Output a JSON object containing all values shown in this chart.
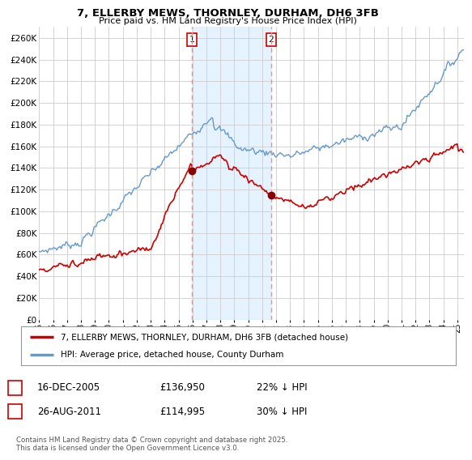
{
  "title": "7, ELLERBY MEWS, THORNLEY, DURHAM, DH6 3FB",
  "subtitle": "Price paid vs. HM Land Registry's House Price Index (HPI)",
  "ylabel_ticks": [
    "£0",
    "£20K",
    "£40K",
    "£60K",
    "£80K",
    "£100K",
    "£120K",
    "£140K",
    "£160K",
    "£180K",
    "£200K",
    "£220K",
    "£240K",
    "£260K"
  ],
  "ytick_values": [
    0,
    20000,
    40000,
    60000,
    80000,
    100000,
    120000,
    140000,
    160000,
    180000,
    200000,
    220000,
    240000,
    260000
  ],
  "ylim": [
    0,
    270000
  ],
  "xlim_start": 1995.0,
  "xlim_end": 2025.5,
  "marker1_date": 2005.96,
  "marker1_value": 136950,
  "marker1_label": "1",
  "marker1_text": "16-DEC-2005",
  "marker1_price": "£136,950",
  "marker1_hpi": "22% ↓ HPI",
  "marker2_date": 2011.65,
  "marker2_value": 114995,
  "marker2_label": "2",
  "marker2_text": "26-AUG-2011",
  "marker2_price": "£114,995",
  "marker2_hpi": "30% ↓ HPI",
  "shade_start": 2005.96,
  "shade_end": 2011.65,
  "legend_line1": "7, ELLERBY MEWS, THORNLEY, DURHAM, DH6 3FB (detached house)",
  "legend_line2": "HPI: Average price, detached house, County Durham",
  "footnote": "Contains HM Land Registry data © Crown copyright and database right 2025.\nThis data is licensed under the Open Government Licence v3.0.",
  "bg_color": "#ffffff",
  "grid_color": "#cccccc",
  "red_line_color": "#cc0000",
  "blue_line_color": "#6699cc",
  "shade_color": "#ddeeff",
  "marker_color": "#880000",
  "dashed_line_color": "#ff8888"
}
